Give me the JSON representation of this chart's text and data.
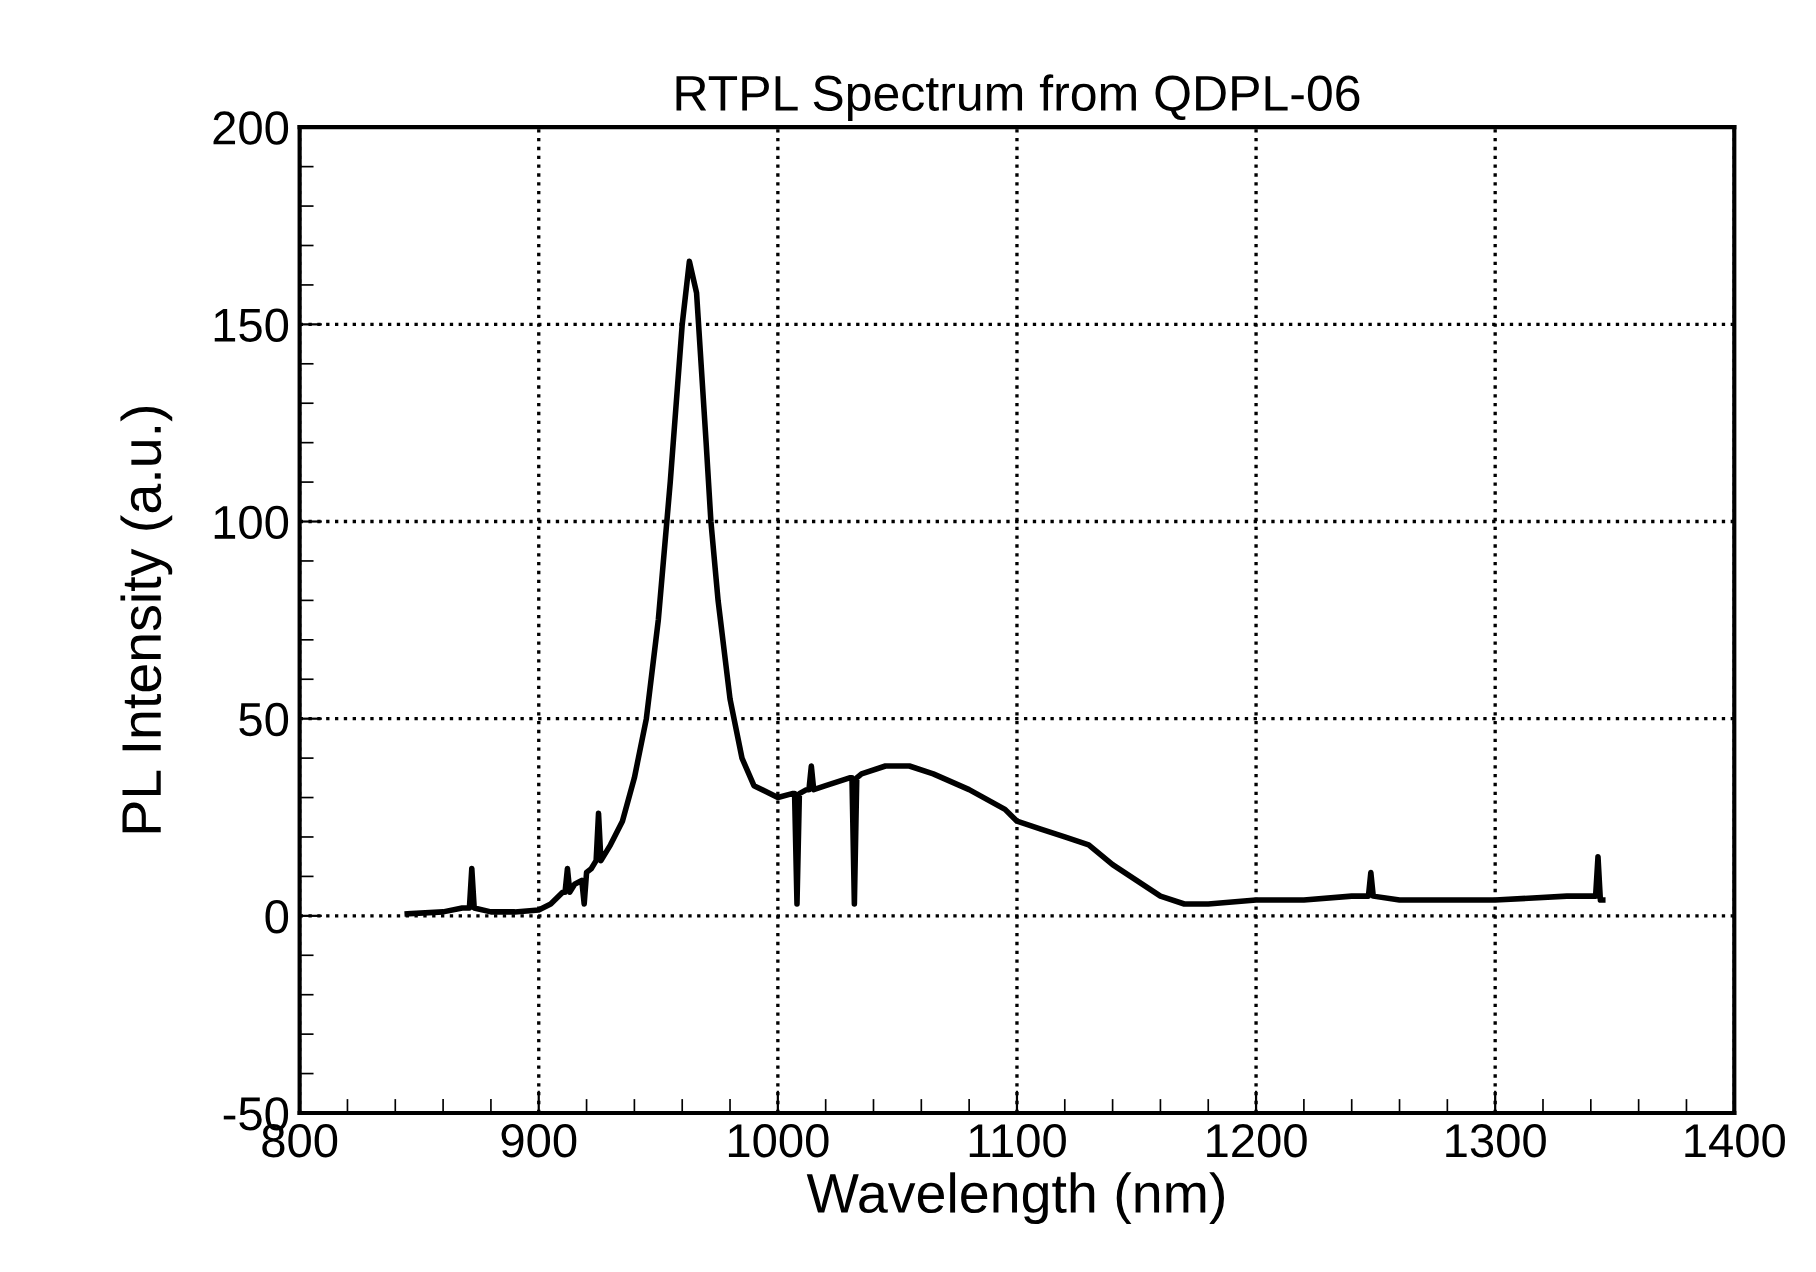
{
  "chart_data": {
    "type": "line",
    "title": "RTPL Spectrum from QDPL-06",
    "xlabel": "Wavelength (nm)",
    "ylabel": "PL Intensity (a.u.)",
    "xlim": [
      800,
      1400
    ],
    "xticks": [
      800,
      900,
      1000,
      1100,
      1200,
      1300,
      1400
    ],
    "ylim": [
      -50,
      200
    ],
    "yticks": [
      -50,
      0,
      50,
      100,
      150,
      200
    ],
    "grid": true,
    "marker": "none",
    "line_style": "solid",
    "series": [
      {
        "color": "#000000",
        "x": [
          845,
          860,
          868,
          871,
          872,
          873,
          880,
          890,
          900,
          905,
          910,
          911,
          912,
          913,
          915,
          918,
          919,
          920,
          922,
          924,
          925,
          926,
          930,
          935,
          940,
          945,
          950,
          955,
          960,
          963,
          966,
          970,
          972,
          975,
          980,
          985,
          990,
          1000,
          1006,
          1007,
          1008,
          1009,
          1012,
          1013,
          1014,
          1015,
          1020,
          1030,
          1031,
          1032,
          1033,
          1035,
          1045,
          1055,
          1065,
          1080,
          1095,
          1100,
          1110,
          1120,
          1130,
          1140,
          1150,
          1160,
          1170,
          1180,
          1200,
          1220,
          1240,
          1247,
          1248,
          1249,
          1260,
          1300,
          1330,
          1342,
          1343,
          1344,
          1345
        ],
        "values": [
          0.5,
          1,
          2,
          2,
          12,
          2,
          1,
          1,
          1.5,
          3,
          6,
          6,
          12,
          6,
          8,
          9,
          3,
          11,
          12,
          14,
          26,
          14,
          18,
          24,
          35,
          50,
          75,
          110,
          150,
          166,
          158,
          120,
          100,
          80,
          55,
          40,
          33,
          30,
          31,
          31,
          3,
          31,
          32,
          32,
          38,
          32,
          33,
          35,
          35,
          3,
          35,
          36,
          38,
          38,
          36,
          32,
          27,
          24,
          22,
          20,
          18,
          13,
          9,
          5,
          3,
          3,
          4,
          4,
          5,
          5,
          11,
          5,
          4,
          4,
          5,
          5,
          15,
          4,
          4
        ]
      }
    ]
  }
}
